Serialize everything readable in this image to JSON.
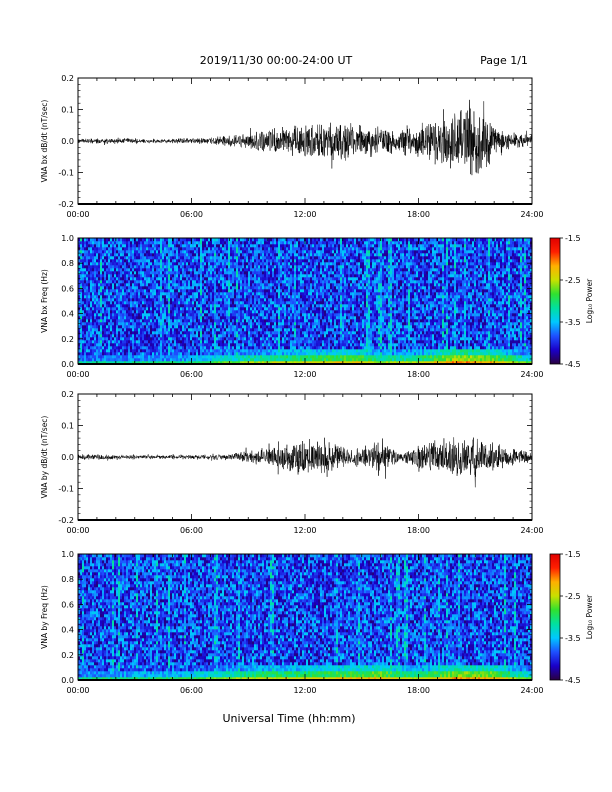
{
  "header": {
    "title": "2019/11/30  00:00-24:00 UT",
    "page": "Page 1/1"
  },
  "xlabel": "Universal Time (hh:mm)",
  "colors": {
    "trace": "#000000",
    "colormap": [
      "#2a0040",
      "#1a00c8",
      "#1e50ff",
      "#00c8ff",
      "#00e0a0",
      "#30e030",
      "#c8e000",
      "#ffb000",
      "#ff2000",
      "#e00000"
    ]
  },
  "chart_data": [
    {
      "type": "line",
      "ylabel": "VNA bx dB/dt (nT/sec)",
      "xlim": [
        0,
        24
      ],
      "ylim": [
        -0.2,
        0.2
      ],
      "xticks": [
        "00:00",
        "06:00",
        "12:00",
        "18:00",
        "24:00"
      ],
      "yticks": [
        "-0.2",
        "-0.1",
        "0.0",
        "0.1",
        "0.2"
      ],
      "envelope": {
        "x": [
          0,
          2,
          4,
          6,
          7,
          8,
          9,
          10,
          11,
          12,
          13,
          14,
          15,
          16,
          17,
          18,
          19,
          20,
          20.5,
          21,
          21.5,
          22,
          23,
          24
        ],
        "amplitude": [
          0.01,
          0.01,
          0.008,
          0.01,
          0.012,
          0.02,
          0.03,
          0.04,
          0.05,
          0.06,
          0.07,
          0.075,
          0.06,
          0.05,
          0.045,
          0.06,
          0.09,
          0.1,
          0.12,
          0.14,
          0.1,
          0.06,
          0.03,
          0.025
        ]
      }
    },
    {
      "type": "heatmap",
      "ylabel": "VNA bx Freq (Hz)",
      "xlim": [
        0,
        24
      ],
      "ylim": [
        0.0,
        1.0
      ],
      "xticks": [
        "00:00",
        "06:00",
        "12:00",
        "18:00",
        "24:00"
      ],
      "yticks": [
        "0.0",
        "0.2",
        "0.4",
        "0.6",
        "0.8",
        "1.0"
      ],
      "colorbar": {
        "label": "Log₁₀ Power",
        "ticks": [
          "-1.5",
          "-2.5",
          "-3.5",
          "-4.5"
        ],
        "range": [
          -4.5,
          -1.5
        ]
      },
      "background_level": -3.9,
      "low_band_level": {
        "x": [
          0,
          6,
          9,
          12,
          14,
          15,
          16,
          18,
          20,
          22,
          24
        ],
        "value": [
          -3.2,
          -3.0,
          -2.6,
          -2.4,
          -2.3,
          -2.3,
          -2.6,
          -2.5,
          -2.0,
          -2.2,
          -2.8
        ]
      }
    },
    {
      "type": "line",
      "ylabel": "VNA by dB/dt (nT/sec)",
      "xlim": [
        0,
        24
      ],
      "ylim": [
        -0.2,
        0.2
      ],
      "xticks": [
        "00:00",
        "06:00",
        "12:00",
        "18:00",
        "24:00"
      ],
      "yticks": [
        "-0.2",
        "-0.1",
        "0.0",
        "0.1",
        "0.2"
      ],
      "envelope": {
        "x": [
          0,
          2,
          4,
          6,
          7,
          8,
          9,
          10,
          11,
          12,
          13,
          14,
          15,
          15.5,
          16,
          17,
          18,
          19,
          20,
          21,
          22,
          23,
          24
        ],
        "amplitude": [
          0.01,
          0.008,
          0.008,
          0.008,
          0.01,
          0.012,
          0.02,
          0.035,
          0.05,
          0.06,
          0.07,
          0.035,
          0.03,
          0.05,
          0.07,
          0.015,
          0.05,
          0.07,
          0.07,
          0.08,
          0.05,
          0.03,
          0.02
        ]
      }
    },
    {
      "type": "heatmap",
      "ylabel": "VNA by Freq (Hz)",
      "xlim": [
        0,
        24
      ],
      "ylim": [
        0.0,
        1.0
      ],
      "xticks": [
        "00:00",
        "06:00",
        "12:00",
        "18:00",
        "24:00"
      ],
      "yticks": [
        "0.0",
        "0.2",
        "0.4",
        "0.6",
        "0.8",
        "1.0"
      ],
      "colorbar": {
        "label": "Log₁₀ Power",
        "ticks": [
          "-1.5",
          "-2.5",
          "-3.5",
          "-4.5"
        ],
        "range": [
          -4.5,
          -1.5
        ]
      },
      "background_level": -3.9,
      "low_band_level": {
        "x": [
          0,
          6,
          9,
          12,
          14,
          16,
          17,
          18,
          20,
          22,
          24
        ],
        "value": [
          -3.1,
          -2.9,
          -2.5,
          -2.4,
          -2.3,
          -2.2,
          -2.4,
          -2.5,
          -2.1,
          -2.2,
          -2.8
        ]
      }
    }
  ]
}
